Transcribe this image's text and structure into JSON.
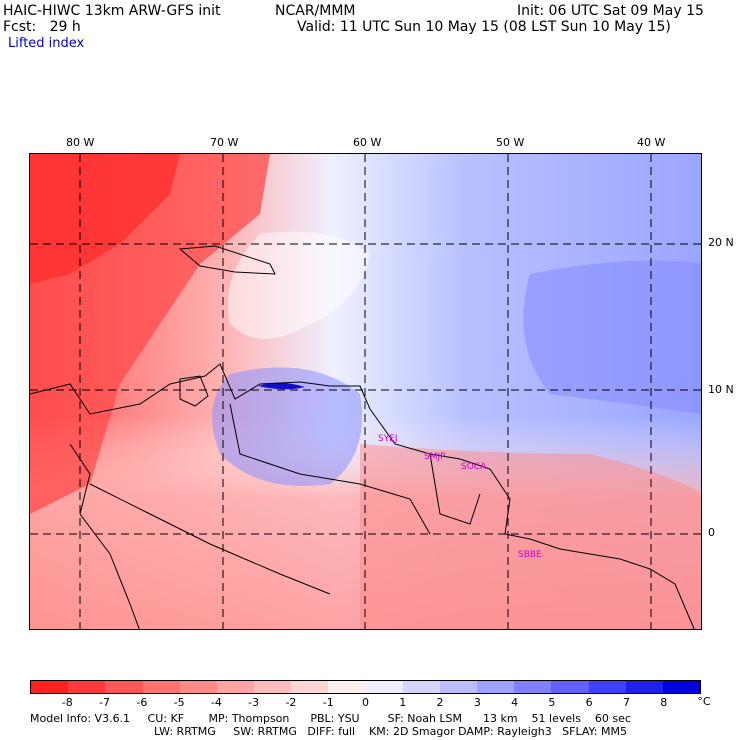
{
  "header": {
    "model": "HAIC-HIWC 13km ARW-GFS init",
    "org": "NCAR/MMM",
    "init": "Init: 06 UTC Sat 09 May 15",
    "fcst": "Fcst:   29 h",
    "valid": "Valid: 11 UTC Sun 10 May 15 (08 LST Sun 10 May 15)",
    "field": "Lifted index"
  },
  "map": {
    "lon_labels": [
      "80 W",
      "70 W",
      "60 W",
      "50 W",
      "40 W"
    ],
    "lat_labels": [
      "20 N",
      "10 N",
      "0"
    ],
    "stations": [
      "SYEJ",
      "SMJP",
      "SOCA",
      "SBBE"
    ]
  },
  "colorbar": {
    "unit": "°C",
    "labels": [
      "-8",
      "-7",
      "-6",
      "-5",
      "-4",
      "-3",
      "-2",
      "-1",
      "0",
      "1",
      "2",
      "3",
      "4",
      "5",
      "6",
      "7",
      "8"
    ],
    "colors": [
      "#ff2020",
      "#ff3a3a",
      "#ff5656",
      "#ff7070",
      "#ff8a8a",
      "#ffa4a4",
      "#ffbcbc",
      "#ffd4d4",
      "#ffeeee",
      "#eeeeff",
      "#d4d4ff",
      "#bcbcff",
      "#a0a0ff",
      "#8080ff",
      "#6060ff",
      "#4040ff",
      "#2020ee",
      "#0000dd"
    ]
  },
  "footer": {
    "line1": "Model Info: V3.6.1     CU: KF       MP: Thompson      PBL: YSU        SF: Noah LSM      13 km    51 levels    60 sec",
    "line2": "LW: RRTMG     SW: RRTMG   DIFF: full    KM: 2D Smagor DAMP: Rayleigh3   SFLAY: MM5"
  }
}
